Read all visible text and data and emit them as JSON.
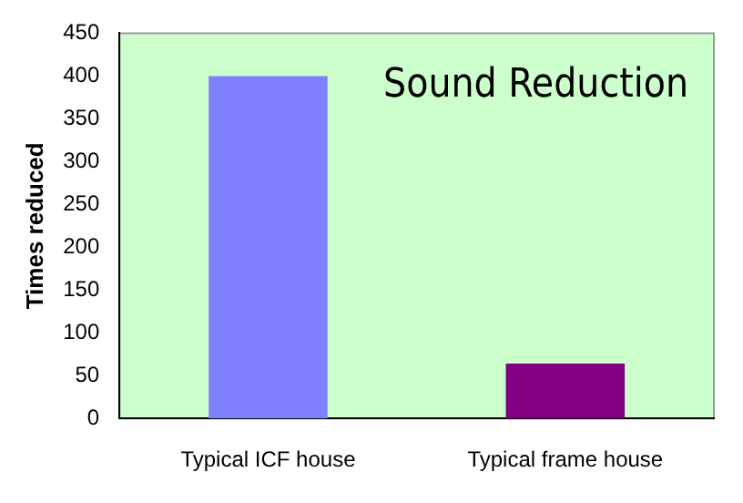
{
  "chart_data": {
    "type": "bar",
    "title": "Sound Reduction",
    "ylabel": "Times reduced",
    "categories": [
      "Typical ICF house",
      "Typical frame house"
    ],
    "values": [
      400,
      64
    ],
    "colors": [
      "#8080ff",
      "#800080"
    ],
    "ylim": [
      0,
      450
    ],
    "yticks": [
      0,
      50,
      100,
      150,
      200,
      250,
      300,
      350,
      400,
      450
    ],
    "grid": false,
    "legend": false
  }
}
